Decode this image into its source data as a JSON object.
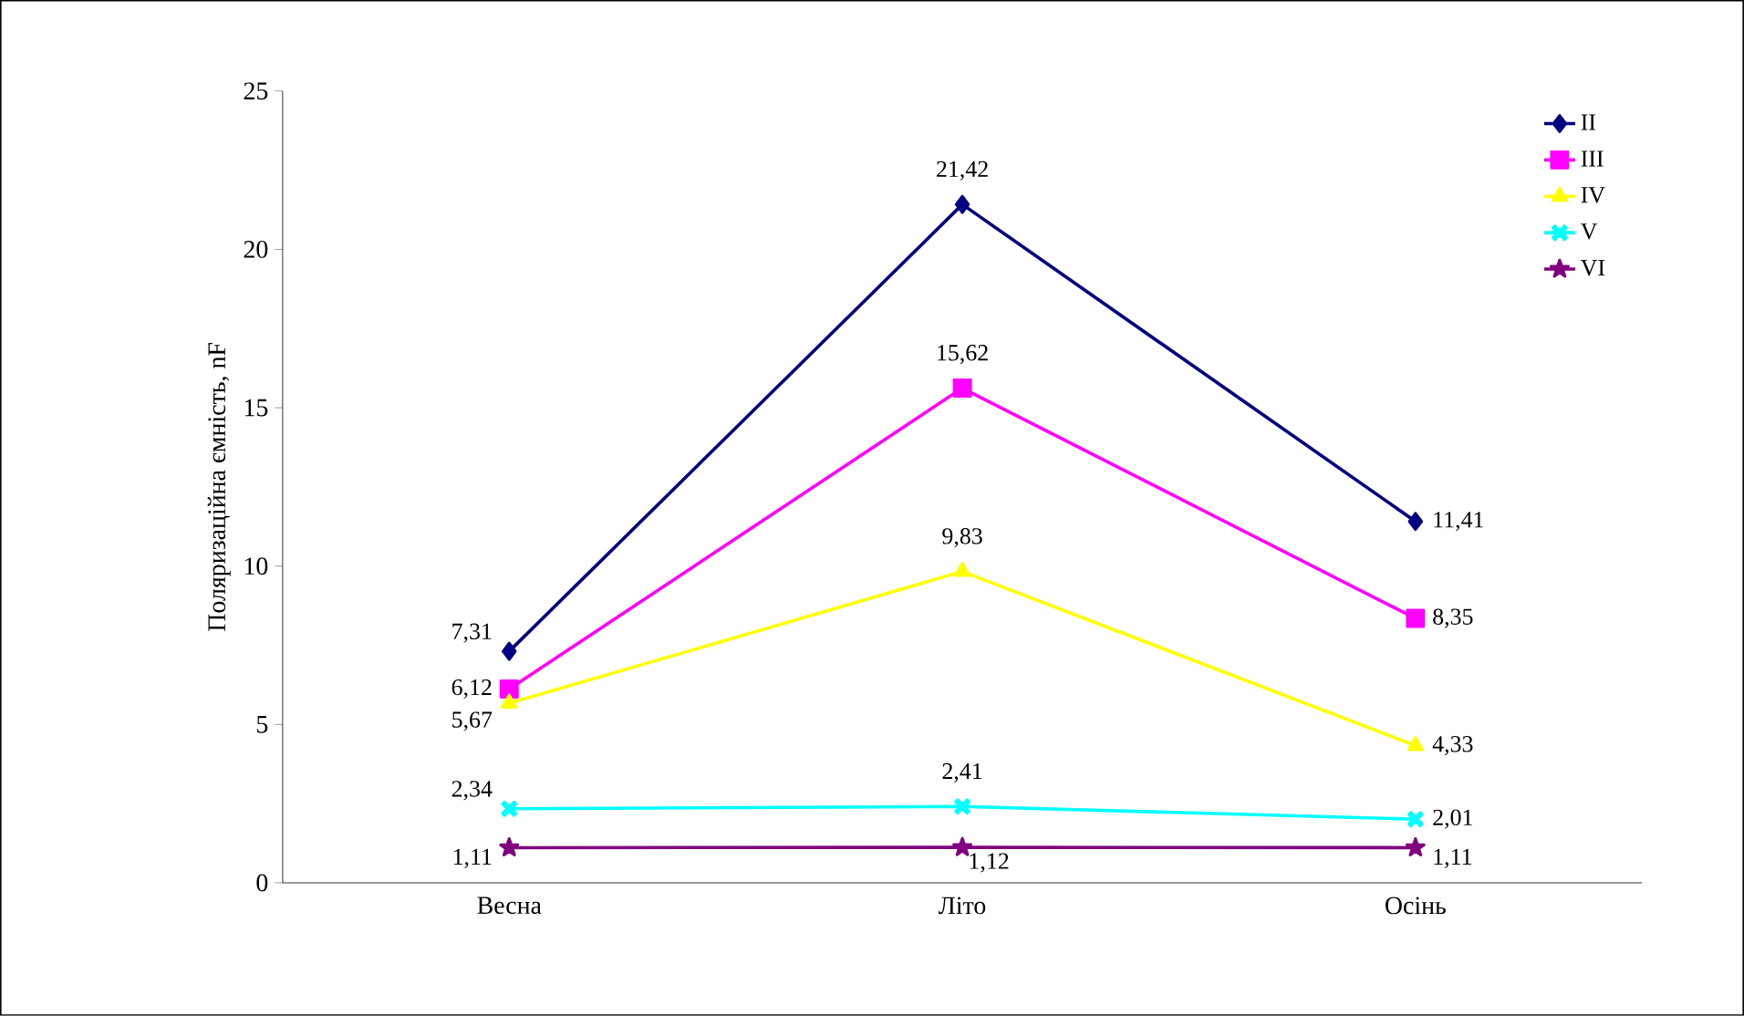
{
  "chart_data": {
    "type": "line",
    "ylabel": "Поляризаційна ємність, nF",
    "categories": [
      "Весна",
      "Літо",
      "Осінь"
    ],
    "ylim": [
      0,
      25
    ],
    "yticks": [
      0,
      5,
      10,
      15,
      20,
      25
    ],
    "grid": false,
    "legend": "top right",
    "series": [
      {
        "name": "II",
        "color": "#000080",
        "marker": "diamond",
        "values": [
          7.31,
          21.42,
          11.41
        ],
        "value_labels": [
          "7,31",
          "21,42",
          "11,41"
        ]
      },
      {
        "name": "III",
        "color": "#ff00ff",
        "marker": "square",
        "values": [
          6.12,
          15.62,
          8.35
        ],
        "value_labels": [
          "6,12",
          "15,62",
          "8,35"
        ]
      },
      {
        "name": "IV",
        "color": "#ffff00",
        "marker": "triangle",
        "values": [
          5.67,
          9.83,
          4.33
        ],
        "value_labels": [
          "5,67",
          "9,83",
          "4,33"
        ]
      },
      {
        "name": "V",
        "color": "#00ffff",
        "marker": "cross",
        "values": [
          2.34,
          2.41,
          2.01
        ],
        "value_labels": [
          "2,34",
          "2,41",
          "2,01"
        ]
      },
      {
        "name": "VI",
        "color": "#800080",
        "marker": "star",
        "values": [
          1.11,
          1.12,
          1.11
        ],
        "value_labels": [
          "1,11",
          "1,12",
          "1,11"
        ]
      }
    ]
  }
}
